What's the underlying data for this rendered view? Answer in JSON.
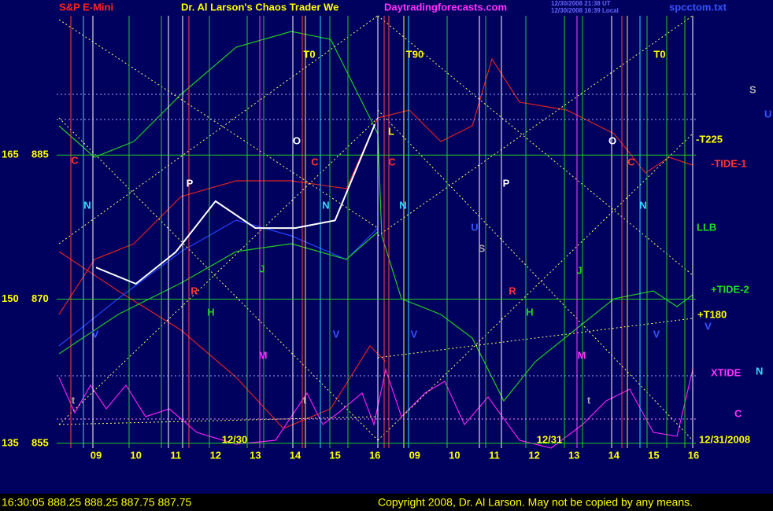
{
  "header": {
    "symbol": "S&P E-Mini",
    "title": "Dr. Al Larson's Chaos Trader We",
    "site": "Daytradingforecasts.com",
    "stamp_ut": "12/30/2008 21:38 UT",
    "stamp_local": "12/30/2008 16:39 Local",
    "file": "spcctom.txt"
  },
  "chart_data": {
    "type": "line",
    "categories": [
      "09",
      "10",
      "11",
      "12",
      "13",
      "14",
      "15",
      "16",
      "09",
      "10",
      "11",
      "12",
      "13",
      "14",
      "15",
      "16"
    ],
    "series": [
      {
        "name": "S&P E-Mini",
        "color": "#ffffff",
        "values": [
          873.3,
          871.6,
          874.9,
          880.2,
          877.4,
          877.4,
          878.2,
          888.2,
          null,
          null,
          null,
          null,
          null,
          null,
          null,
          null
        ]
      }
    ],
    "ylim": [
      854.5,
      899.5
    ],
    "yticks": [
      855,
      870,
      885
    ],
    "y2lim": [
      134.5,
      179.5
    ],
    "y2ticks": [
      135,
      150,
      165
    ],
    "dates": [
      "12/30",
      "12/31",
      "12/31/2008"
    ],
    "right_labels": [
      "-T225",
      "-TIDE-1",
      "LLB",
      "+TIDE-2",
      "+T180",
      "XTIDE",
      "C",
      "N",
      "U",
      "S",
      "V"
    ],
    "annotations": [
      "T0",
      "T90",
      "T0",
      "O",
      "O",
      "C",
      "C",
      "C",
      "C",
      "P",
      "P",
      "N",
      "N",
      "N",
      "N",
      "S",
      "U",
      "J",
      "J",
      "R",
      "R",
      "H",
      "H",
      "V",
      "V",
      "V",
      "V",
      "M",
      "M",
      "t",
      "t",
      "t",
      "L"
    ]
  },
  "footer": {
    "quote": "16:30:05  888.25 888.25 887.75 887.75",
    "copyright": "Copyright 2008, Dr. Al Larson. May not be copied by any means."
  }
}
